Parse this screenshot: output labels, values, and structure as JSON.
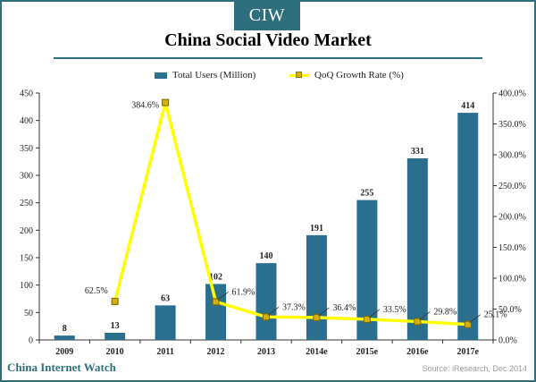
{
  "header": {
    "badge": "CIW"
  },
  "footer": {
    "brand": "China Internet Watch",
    "source": "Source: iResearch, Dec 2014"
  },
  "colors": {
    "frame": "#2f6f7d",
    "bars": "#2b6f8f",
    "line": "#ffff00",
    "marker": "#d4b000"
  },
  "chart_data": {
    "type": "bar",
    "title": "China Social Video Market",
    "categories": [
      "2009",
      "2010",
      "2011",
      "2012",
      "2013",
      "2014e",
      "2015e",
      "2016e",
      "2017e"
    ],
    "series": [
      {
        "name": "Total Users (Million)",
        "type": "bar",
        "axis": "left",
        "values": [
          8,
          13,
          63,
          102,
          140,
          191,
          255,
          331,
          414
        ],
        "labels": [
          "8",
          "13",
          "63",
          "102",
          "140",
          "191",
          "255",
          "331",
          "414"
        ]
      },
      {
        "name": "QoQ Growth Rate (%)",
        "type": "line",
        "axis": "right",
        "values": [
          null,
          62.5,
          384.6,
          61.9,
          37.3,
          36.4,
          33.5,
          29.8,
          25.1
        ],
        "labels": [
          "",
          "62.5%",
          "384.6%",
          "61.9%",
          "37.3%",
          "36.4%",
          "33.5%",
          "29.8%",
          "25.1%"
        ]
      }
    ],
    "y_left": {
      "min": 0,
      "max": 450,
      "ticks": [
        0,
        50,
        100,
        150,
        200,
        250,
        300,
        350,
        400,
        450
      ],
      "tick_labels": [
        "0",
        "50",
        "100",
        "150",
        "200",
        "250",
        "300",
        "350",
        "400",
        "450"
      ]
    },
    "y_right": {
      "min": 0,
      "max": 400,
      "ticks": [
        0,
        50,
        100,
        150,
        200,
        250,
        300,
        350,
        400
      ],
      "tick_labels": [
        "0.0%",
        "50.0%",
        "100.0%",
        "150.0%",
        "200.0%",
        "250.0%",
        "300.0%",
        "350.0%",
        "400.0%"
      ]
    },
    "legend_position": "top-center",
    "grid": false
  }
}
